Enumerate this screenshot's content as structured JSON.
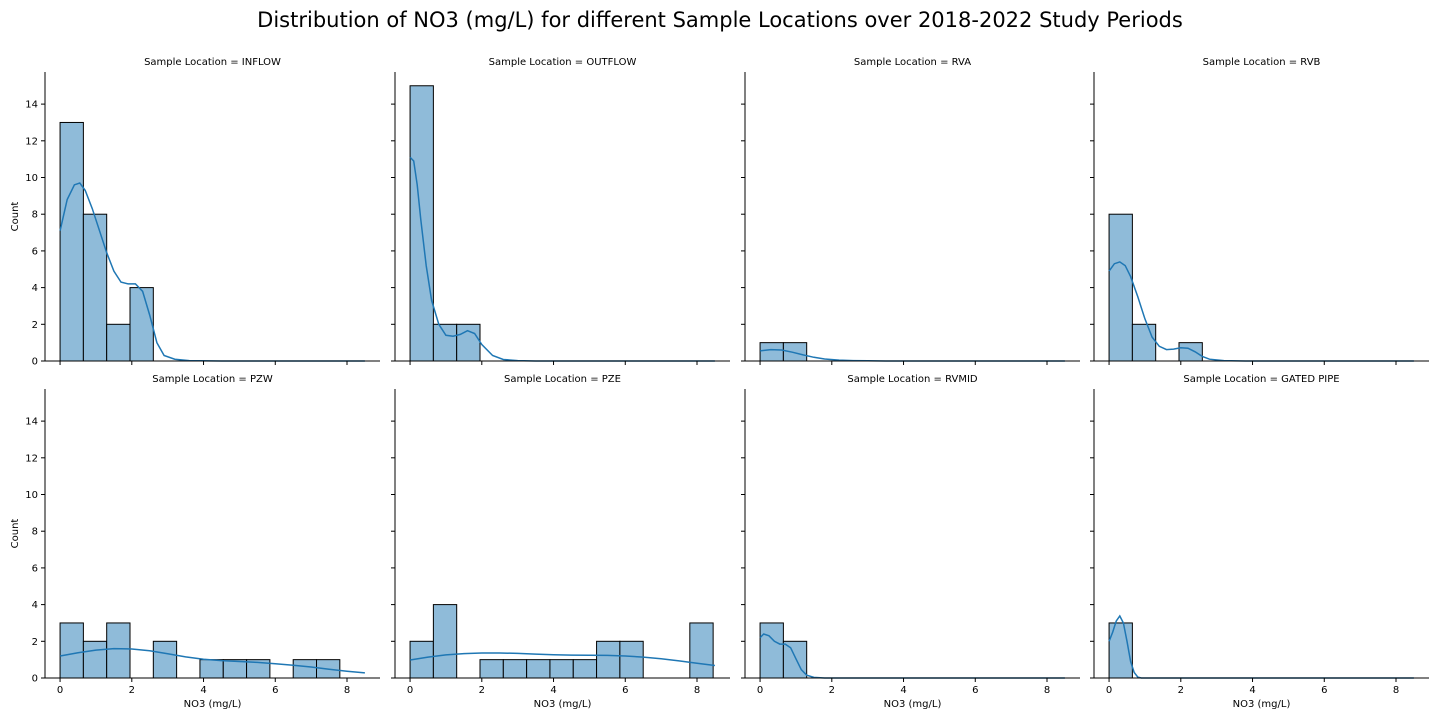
{
  "title": "Distribution of NO3 (mg/L) for different Sample Locations over 2018-2022 Study Periods",
  "chart_data": {
    "type": "histogram-facet-grid",
    "title": "Distribution of NO3 (mg/L) for different Sample Locations over 2018-2022 Study Periods",
    "xlabel": "NO3 (mg/L)",
    "ylabel": "Count",
    "xlim": [
      -0.42,
      8.92
    ],
    "ylim": [
      0,
      15.75
    ],
    "xticks": [
      0,
      2,
      4,
      6,
      8
    ],
    "yticks": [
      0,
      2,
      4,
      6,
      8,
      10,
      12,
      14
    ],
    "bin_width": 0.65,
    "bin_edges": [
      0,
      0.65,
      1.3,
      1.95,
      2.6,
      3.25,
      3.9,
      4.55,
      5.2,
      5.85,
      6.5,
      7.15,
      7.8,
      8.45
    ],
    "bar_color": "#8fbbd9",
    "edge_color": "#000000",
    "kde_color": "#1f77b4",
    "grid": false,
    "facets": [
      {
        "title": "Sample Location = INFLOW",
        "counts": [
          13,
          8,
          2,
          4,
          0,
          0,
          0,
          0,
          0,
          0,
          0,
          0,
          0
        ],
        "kde_x": [
          0,
          0.2,
          0.4,
          0.55,
          0.7,
          0.9,
          1.1,
          1.3,
          1.5,
          1.7,
          1.9,
          2.1,
          2.3,
          2.5,
          2.7,
          2.9,
          3.2,
          3.6,
          4.5,
          8.5
        ],
        "kde_y": [
          7.1,
          8.8,
          9.6,
          9.7,
          9.3,
          8.3,
          7.1,
          5.9,
          4.9,
          4.3,
          4.2,
          4.2,
          3.8,
          2.5,
          1.0,
          0.3,
          0.1,
          0.02,
          0,
          0
        ]
      },
      {
        "title": "Sample Location = OUTFLOW",
        "counts": [
          15,
          2,
          2,
          0,
          0,
          0,
          0,
          0,
          0,
          0,
          0,
          0,
          0
        ],
        "kde_x": [
          0,
          0.1,
          0.2,
          0.3,
          0.45,
          0.6,
          0.8,
          1.0,
          1.2,
          1.4,
          1.6,
          1.8,
          2.0,
          2.3,
          2.6,
          3.0,
          3.5,
          8.5
        ],
        "kde_y": [
          11.1,
          10.9,
          9.6,
          7.7,
          5.2,
          3.3,
          2.0,
          1.4,
          1.35,
          1.45,
          1.65,
          1.5,
          0.9,
          0.3,
          0.08,
          0.02,
          0,
          0
        ]
      },
      {
        "title": "Sample Location = RVA",
        "counts": [
          1,
          1,
          0,
          0,
          0,
          0,
          0,
          0,
          0,
          0,
          0,
          0,
          0
        ],
        "kde_x": [
          0,
          0.3,
          0.6,
          0.9,
          1.2,
          1.5,
          1.8,
          2.2,
          2.6,
          3.0,
          3.5,
          8.5
        ],
        "kde_y": [
          0.55,
          0.62,
          0.6,
          0.48,
          0.33,
          0.2,
          0.11,
          0.05,
          0.02,
          0.01,
          0,
          0
        ]
      },
      {
        "title": "Sample Location = RVB",
        "counts": [
          8,
          2,
          0,
          1,
          0,
          0,
          0,
          0,
          0,
          0,
          0,
          0,
          0
        ],
        "kde_x": [
          0,
          0.15,
          0.3,
          0.45,
          0.6,
          0.8,
          1.0,
          1.2,
          1.4,
          1.6,
          1.8,
          2.0,
          2.2,
          2.4,
          2.6,
          2.8,
          3.2,
          3.8,
          8.5
        ],
        "kde_y": [
          4.9,
          5.3,
          5.4,
          5.2,
          4.6,
          3.5,
          2.3,
          1.3,
          0.8,
          0.62,
          0.65,
          0.72,
          0.7,
          0.5,
          0.25,
          0.1,
          0.02,
          0,
          0
        ]
      },
      {
        "title": "Sample Location = PZW",
        "counts": [
          3,
          2,
          3,
          0,
          2,
          0,
          1,
          1,
          1,
          0,
          1,
          1,
          0
        ],
        "kde_x": [
          0,
          0.5,
          1,
          1.5,
          2,
          2.5,
          3,
          3.5,
          4,
          4.5,
          5,
          5.5,
          6,
          6.5,
          7,
          7.5,
          8,
          8.5
        ],
        "kde_y": [
          1.2,
          1.38,
          1.52,
          1.6,
          1.58,
          1.48,
          1.32,
          1.15,
          1.02,
          0.95,
          0.9,
          0.85,
          0.78,
          0.7,
          0.6,
          0.48,
          0.37,
          0.28
        ]
      },
      {
        "title": "Sample Location = PZE",
        "counts": [
          2,
          4,
          0,
          1,
          1,
          1,
          1,
          1,
          2,
          2,
          0,
          0,
          3
        ],
        "kde_x": [
          0,
          0.5,
          1,
          1.5,
          2,
          2.5,
          3,
          3.5,
          4,
          4.5,
          5,
          5.5,
          6,
          6.5,
          7,
          7.5,
          8,
          8.5
        ],
        "kde_y": [
          0.98,
          1.14,
          1.26,
          1.33,
          1.36,
          1.36,
          1.34,
          1.3,
          1.27,
          1.25,
          1.24,
          1.23,
          1.2,
          1.14,
          1.05,
          0.93,
          0.8,
          0.68
        ]
      },
      {
        "title": "Sample Location = RVMID",
        "counts": [
          3,
          2,
          0,
          0,
          0,
          0,
          0,
          0,
          0,
          0,
          0,
          0,
          0
        ],
        "kde_x": [
          0,
          0.1,
          0.25,
          0.4,
          0.55,
          0.7,
          0.85,
          1.0,
          1.15,
          1.3,
          1.5,
          1.8,
          2.2,
          8.5
        ],
        "kde_y": [
          2.2,
          2.4,
          2.3,
          2.0,
          1.85,
          1.85,
          1.65,
          1.05,
          0.45,
          0.15,
          0.03,
          0,
          0,
          0
        ]
      },
      {
        "title": "Sample Location = GATED PIPE",
        "counts": [
          3,
          0,
          0,
          0,
          0,
          0,
          0,
          0,
          0,
          0,
          0,
          0,
          0
        ],
        "kde_x": [
          0,
          0.1,
          0.2,
          0.3,
          0.4,
          0.5,
          0.6,
          0.7,
          0.8,
          0.9,
          8.5
        ],
        "kde_y": [
          2.0,
          2.5,
          3.1,
          3.38,
          3.0,
          2.0,
          0.9,
          0.3,
          0.05,
          0,
          0
        ]
      }
    ]
  }
}
